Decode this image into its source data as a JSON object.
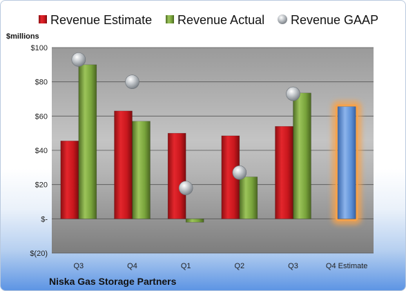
{
  "chart_data": {
    "type": "bar",
    "company": "Niska Gas Storage Partners",
    "ylabel": "$millions",
    "ylim": [
      -20,
      100
    ],
    "yticks": [
      {
        "value": -20,
        "label": "$(20)"
      },
      {
        "value": 0,
        "label": "$-"
      },
      {
        "value": 20,
        "label": "$20"
      },
      {
        "value": 40,
        "label": "$40"
      },
      {
        "value": 60,
        "label": "$60"
      },
      {
        "value": 80,
        "label": "$80"
      },
      {
        "value": 100,
        "label": "$100"
      }
    ],
    "categories": [
      "Q3",
      "Q4",
      "Q1",
      "Q2",
      "Q3",
      "Q4 Estimate"
    ],
    "series": [
      {
        "name": "Revenue Estimate",
        "kind": "bar",
        "color": "#c8171d",
        "values": [
          45.5,
          63,
          50,
          48.5,
          54,
          null
        ]
      },
      {
        "name": "Revenue Actual",
        "kind": "bar",
        "color": "#78a33b",
        "values": [
          90,
          57,
          -2,
          24.5,
          73.5,
          null
        ]
      },
      {
        "name": "Revenue GAAP",
        "kind": "marker",
        "color": "#9aa0a6",
        "values": [
          93,
          80,
          18,
          27,
          73,
          null
        ]
      },
      {
        "name": "Q4 Estimate",
        "kind": "bar",
        "color": "#5b8fd6",
        "highlight": "#f7a24a",
        "values": [
          null,
          null,
          null,
          null,
          null,
          65.5
        ],
        "legend": false
      }
    ],
    "legend_position": "top",
    "grid": true
  }
}
